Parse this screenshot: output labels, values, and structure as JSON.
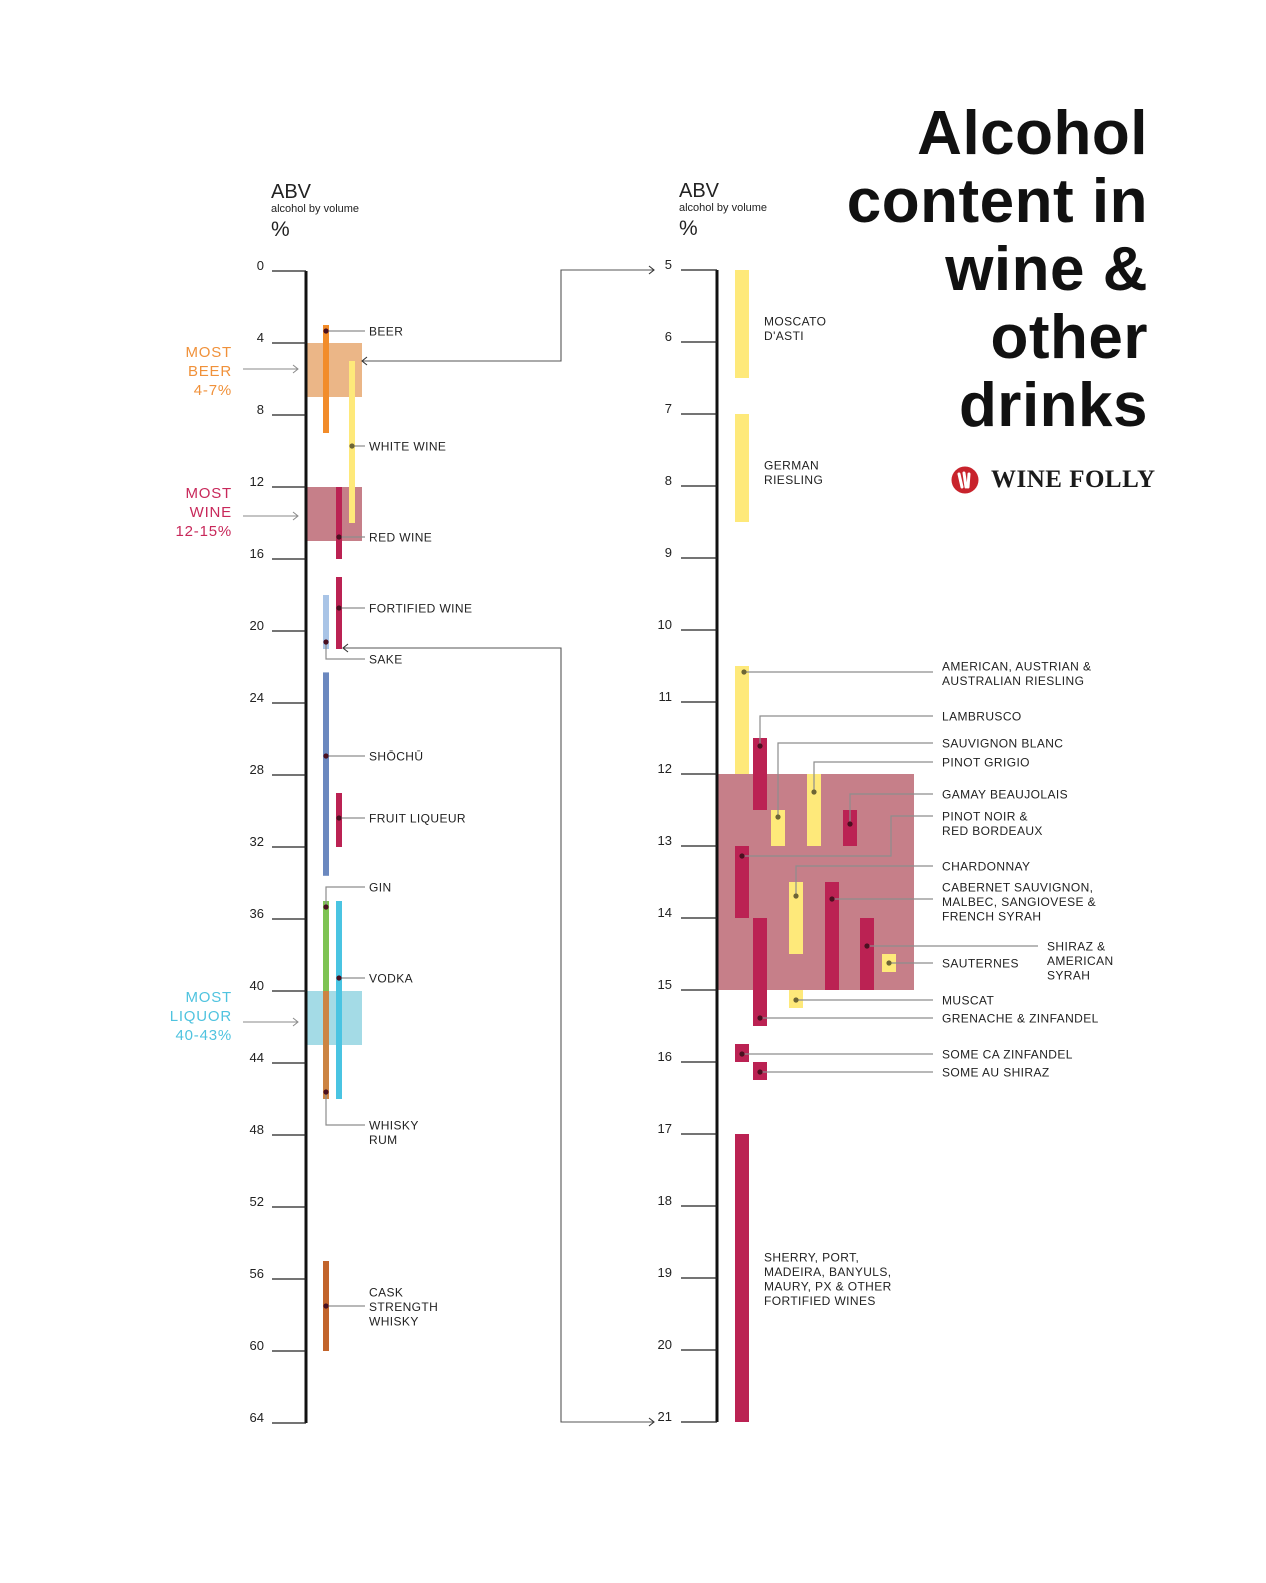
{
  "title": {
    "lines": [
      "Alcohol",
      "content in",
      "wine &",
      "other",
      "drinks"
    ]
  },
  "brand": {
    "name": "WINE FOLLY",
    "icon": "wine-folly-logo-icon",
    "color": "#c8232c"
  },
  "chart_data": [
    {
      "type": "bar",
      "orientation": "vertical floating ranges",
      "ylabel": "ABV",
      "ylabel_sub": "alcohol by volume",
      "yunit": "%",
      "ylim": [
        0,
        64
      ],
      "yticks": [
        "0",
        "4",
        "8",
        "12",
        "16",
        "20",
        "24",
        "28",
        "32",
        "36",
        "40",
        "44",
        "48",
        "52",
        "56",
        "60",
        "64"
      ],
      "grid": false,
      "highlights": [
        {
          "label_lines": [
            "MOST",
            "BEER",
            "4-7%"
          ],
          "range": [
            4,
            7
          ],
          "color": "#ebb687",
          "text_color": "#f0913a"
        },
        {
          "label_lines": [
            "MOST",
            "WINE",
            "12-15%"
          ],
          "range": [
            12,
            15
          ],
          "color": "#c67f89",
          "text_color": "#c8285a"
        },
        {
          "label_lines": [
            "MOST",
            "LIQUOR",
            "40-43%"
          ],
          "range": [
            40,
            43
          ],
          "color": "#a4dbe6",
          "text_color": "#4fc3df"
        }
      ],
      "series": [
        {
          "lines": [
            "BEER"
          ],
          "range": [
            3,
            9
          ],
          "color": "#f28c2a"
        },
        {
          "lines": [
            "WHITE WINE"
          ],
          "range": [
            5,
            14
          ],
          "color": "#fee97a"
        },
        {
          "lines": [
            "RED WINE"
          ],
          "range": [
            12,
            16
          ],
          "color": "#bb2253"
        },
        {
          "lines": [
            "FORTIFIED WINE"
          ],
          "range": [
            17,
            21
          ],
          "color": "#bb2253"
        },
        {
          "lines": [
            "SAKE"
          ],
          "range": [
            18,
            21
          ],
          "color": "#a9c4e6"
        },
        {
          "lines": [
            "SHŌCHŪ"
          ],
          "range": [
            22.3,
            33.6
          ],
          "color": "#6b88bf"
        },
        {
          "lines": [
            "FRUIT LIQUEUR"
          ],
          "range": [
            29,
            32
          ],
          "color": "#bb2253"
        },
        {
          "lines": [
            "GIN"
          ],
          "range": [
            35,
            40
          ],
          "color": "#7ec353"
        },
        {
          "lines": [
            "VODKA"
          ],
          "range": [
            35,
            46
          ],
          "color": "#4ac4e2"
        },
        {
          "lines": [
            "WHISKY",
            "RUM"
          ],
          "range": [
            40,
            46
          ],
          "color": "#cc8443"
        },
        {
          "lines": [
            "CASK",
            "STRENGTH",
            "WHISKY"
          ],
          "range": [
            55,
            60
          ],
          "color": "#c2642b"
        }
      ]
    },
    {
      "type": "bar",
      "orientation": "vertical floating ranges",
      "ylabel": "ABV",
      "ylabel_sub": "alcohol by volume",
      "yunit": "%",
      "ylim": [
        5,
        21
      ],
      "yticks": [
        "5",
        "6",
        "7",
        "8",
        "9",
        "10",
        "11",
        "12",
        "13",
        "14",
        "15",
        "16",
        "17",
        "18",
        "19",
        "20",
        "21"
      ],
      "grid": false,
      "highlights": [
        {
          "range": [
            12,
            15
          ],
          "color": "#c67f89"
        }
      ],
      "series": [
        {
          "lines": [
            "MOSCATO",
            "D'ASTI"
          ],
          "range": [
            5,
            6.5
          ],
          "color": "#fee97a"
        },
        {
          "lines": [
            "GERMAN",
            "RIESLING"
          ],
          "range": [
            7,
            8.5
          ],
          "color": "#fee97a"
        },
        {
          "lines": [
            "AMERICAN, AUSTRIAN &",
            "AUSTRALIAN RIESLING"
          ],
          "range": [
            10.5,
            12
          ],
          "color": "#fee97a"
        },
        {
          "lines": [
            "LAMBRUSCO"
          ],
          "range": [
            11.5,
            12.5
          ],
          "color": "#bb2253"
        },
        {
          "lines": [
            "SAUVIGNON BLANC"
          ],
          "range": [
            12.5,
            13
          ],
          "color": "#fee97a"
        },
        {
          "lines": [
            "PINOT GRIGIO"
          ],
          "range": [
            12,
            13
          ],
          "color": "#fee97a"
        },
        {
          "lines": [
            "GAMAY BEAUJOLAIS"
          ],
          "range": [
            12.5,
            13
          ],
          "color": "#bb2253"
        },
        {
          "lines": [
            "PINOT NOIR &",
            "RED BORDEAUX"
          ],
          "range": [
            13,
            14
          ],
          "color": "#bb2253"
        },
        {
          "lines": [
            "CHARDONNAY"
          ],
          "range": [
            13.5,
            14.5
          ],
          "color": "#fee97a"
        },
        {
          "lines": [
            "CABERNET SAUVIGNON,",
            "MALBEC, SANGIOVESE &",
            "FRENCH SYRAH"
          ],
          "range": [
            13.5,
            15
          ],
          "color": "#bb2253"
        },
        {
          "lines": [
            "SHIRAZ &",
            "AMERICAN",
            "SYRAH"
          ],
          "range": [
            14,
            15
          ],
          "color": "#bb2253"
        },
        {
          "lines": [
            "SAUTERNES"
          ],
          "range": [
            14.5,
            14.75
          ],
          "color": "#fee97a"
        },
        {
          "lines": [
            "MUSCAT"
          ],
          "range": [
            15,
            15.25
          ],
          "color": "#fee97a"
        },
        {
          "lines": [
            "GRENACHE & ZINFANDEL"
          ],
          "range": [
            14,
            15.5
          ],
          "color": "#bb2253"
        },
        {
          "lines": [
            "SOME CA ZINFANDEL"
          ],
          "range": [
            15.75,
            16
          ],
          "color": "#bb2253"
        },
        {
          "lines": [
            "SOME AU SHIRAZ"
          ],
          "range": [
            16,
            16.25
          ],
          "color": "#bb2253"
        },
        {
          "lines": [
            "SHERRY, PORT,",
            "MADEIRA, BANYULS,",
            "MAURY, PX & OTHER",
            "FORTIFIED WINES"
          ],
          "range": [
            17,
            21
          ],
          "color": "#bb2253"
        }
      ]
    }
  ]
}
